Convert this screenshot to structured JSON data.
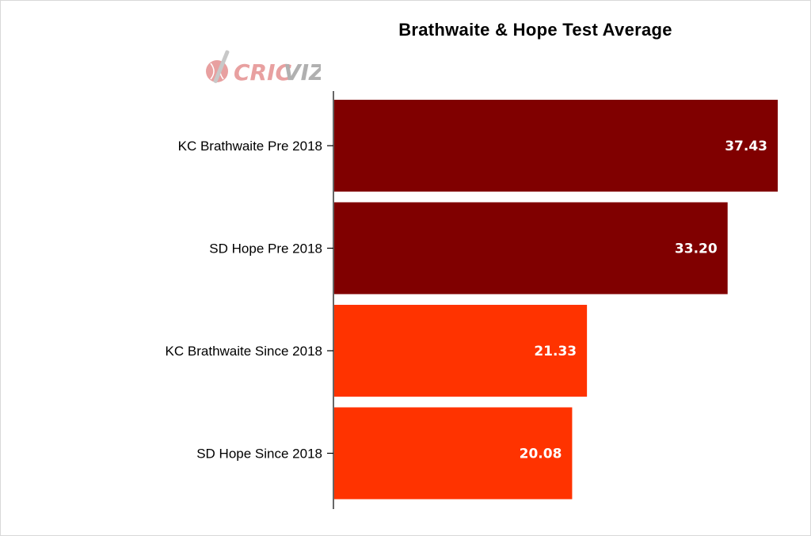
{
  "chart_data": {
    "type": "bar",
    "orientation": "horizontal",
    "title": "Brathwaite & Hope Test Average",
    "categories": [
      "KC Brathwaite Pre 2018",
      "SD Hope Pre 2018",
      "KC Brathwaite Since 2018",
      "SD Hope Since 2018"
    ],
    "values": [
      37.43,
      33.2,
      21.33,
      20.08
    ],
    "value_labels": [
      "37.43",
      "33.20",
      "21.33",
      "20.08"
    ],
    "bar_colors": [
      "#800000",
      "#800000",
      "#ff3300",
      "#ff3300"
    ],
    "xlim": [
      0,
      37.43
    ],
    "grid": false,
    "legend": "none"
  },
  "logo": {
    "text_main": "CRIC",
    "text_accent": "VIZ",
    "icon": "cricket-ball-bat-icon",
    "colors": {
      "main": "#e8a0a0",
      "accent": "#b0b0b0",
      "ball": "#e8a0a0"
    }
  }
}
